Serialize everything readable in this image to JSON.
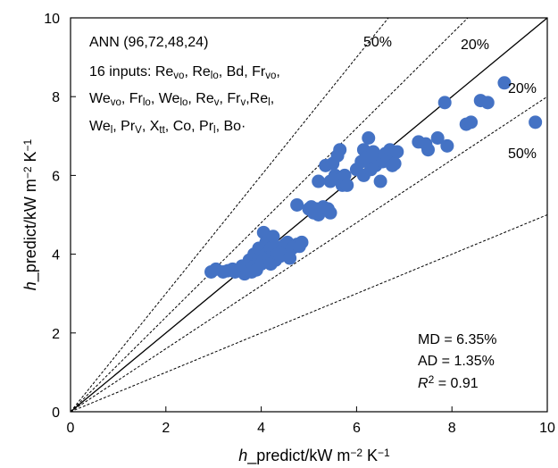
{
  "chart_data": {
    "type": "scatter",
    "xlabel": {
      "italic": "h",
      "rest": "_predict/kW m",
      "sup": "−2",
      "tail": " K",
      "sup2": "−1"
    },
    "ylabel": {
      "italic": "h",
      "rest": "_predict/kW m",
      "sup": "−2",
      "tail": " K",
      "sup2": "−1"
    },
    "xlim": [
      0,
      10
    ],
    "ylim": [
      0,
      10
    ],
    "xticks": [
      "0",
      "2",
      "4",
      "6",
      "8",
      "10"
    ],
    "yticks": [
      "0",
      "2",
      "4",
      "6",
      "8",
      "10"
    ],
    "grid": false,
    "point_color": "#4472c4",
    "reference_lines": [
      {
        "slope": 1.0,
        "style": "solid"
      },
      {
        "slope": 1.2,
        "style": "dashed",
        "label": "20%"
      },
      {
        "slope": 0.8,
        "style": "dashed",
        "label": "20%"
      },
      {
        "slope": 1.5,
        "style": "dashed",
        "label": "50%"
      },
      {
        "slope": 0.5,
        "style": "dashed",
        "label": "50%"
      }
    ],
    "annotations": {
      "model": "ANN (96,72,48,24)",
      "inputs_line1": [
        [
          "16 inputs: Re",
          ""
        ],
        [
          "vo",
          "sub"
        ],
        [
          ", Re",
          ""
        ],
        [
          "lo",
          "sub"
        ],
        [
          ", Bd, Fr",
          ""
        ],
        [
          "vo",
          "sub"
        ],
        [
          ",",
          ""
        ]
      ],
      "inputs_line2": [
        [
          "We",
          ""
        ],
        [
          "vo",
          "sub"
        ],
        [
          ", Fr",
          ""
        ],
        [
          "lo",
          "sub"
        ],
        [
          ", We",
          ""
        ],
        [
          "lo",
          "sub"
        ],
        [
          ", Re",
          ""
        ],
        [
          "v",
          "sub"
        ],
        [
          ", Fr",
          ""
        ],
        [
          "v",
          "sub"
        ],
        [
          ",Re",
          ""
        ],
        [
          "l",
          "sub"
        ],
        [
          ",",
          ""
        ]
      ],
      "inputs_line3": [
        [
          "We",
          ""
        ],
        [
          "l",
          "sub"
        ],
        [
          ", Pr",
          ""
        ],
        [
          "V",
          "sub"
        ],
        [
          ", X",
          ""
        ],
        [
          "tt",
          "sub"
        ],
        [
          ", Co, Pr",
          ""
        ],
        [
          "l",
          "sub"
        ],
        [
          ", Bo·",
          ""
        ]
      ],
      "md": "MD = 6.35%",
      "ad": "AD = 1.35%",
      "r2_pre": "R",
      "r2_sup": "2",
      "r2_post": " = 0.91"
    },
    "points": [
      [
        2.95,
        3.55
      ],
      [
        3.05,
        3.62
      ],
      [
        3.2,
        3.55
      ],
      [
        3.3,
        3.58
      ],
      [
        3.4,
        3.62
      ],
      [
        3.45,
        3.55
      ],
      [
        3.55,
        3.6
      ],
      [
        3.6,
        3.7
      ],
      [
        3.65,
        3.5
      ],
      [
        3.7,
        3.62
      ],
      [
        3.75,
        3.85
      ],
      [
        3.8,
        3.55
      ],
      [
        3.85,
        3.7
      ],
      [
        3.85,
        4.0
      ],
      [
        3.9,
        3.6
      ],
      [
        3.95,
        3.9
      ],
      [
        3.95,
        4.15
      ],
      [
        4.0,
        3.75
      ],
      [
        4.0,
        4.1
      ],
      [
        4.05,
        4.55
      ],
      [
        4.05,
        3.85
      ],
      [
        4.1,
        4.3
      ],
      [
        4.1,
        4.0
      ],
      [
        4.15,
        3.9
      ],
      [
        4.2,
        4.15
      ],
      [
        4.2,
        3.75
      ],
      [
        4.25,
        4.45
      ],
      [
        4.25,
        4.05
      ],
      [
        4.3,
        4.2
      ],
      [
        4.3,
        3.85
      ],
      [
        4.35,
        4.0
      ],
      [
        4.4,
        3.95
      ],
      [
        4.45,
        4.1
      ],
      [
        4.5,
        4.25
      ],
      [
        4.55,
        4.3
      ],
      [
        4.6,
        3.9
      ],
      [
        4.65,
        4.15
      ],
      [
        4.7,
        4.2
      ],
      [
        4.75,
        4.25
      ],
      [
        4.8,
        4.2
      ],
      [
        4.85,
        4.3
      ],
      [
        4.75,
        5.25
      ],
      [
        5.0,
        5.15
      ],
      [
        5.05,
        5.2
      ],
      [
        5.1,
        5.05
      ],
      [
        5.15,
        5.15
      ],
      [
        5.2,
        5.0
      ],
      [
        5.3,
        5.2
      ],
      [
        5.4,
        5.15
      ],
      [
        5.45,
        5.05
      ],
      [
        5.2,
        5.85
      ],
      [
        5.35,
        6.25
      ],
      [
        5.45,
        5.85
      ],
      [
        5.5,
        6.3
      ],
      [
        5.55,
        6.0
      ],
      [
        5.6,
        6.5
      ],
      [
        5.65,
        6.65
      ],
      [
        5.65,
        5.9
      ],
      [
        5.7,
        5.75
      ],
      [
        5.75,
        6.0
      ],
      [
        5.8,
        5.75
      ],
      [
        6.0,
        6.15
      ],
      [
        6.1,
        6.35
      ],
      [
        6.15,
        6.0
      ],
      [
        6.15,
        6.65
      ],
      [
        6.2,
        6.45
      ],
      [
        6.25,
        6.95
      ],
      [
        6.3,
        6.15
      ],
      [
        6.35,
        6.6
      ],
      [
        6.4,
        6.25
      ],
      [
        6.45,
        6.4
      ],
      [
        6.5,
        5.85
      ],
      [
        6.55,
        6.35
      ],
      [
        6.6,
        6.55
      ],
      [
        6.65,
        6.45
      ],
      [
        6.7,
        6.65
      ],
      [
        6.75,
        6.25
      ],
      [
        6.8,
        6.3
      ],
      [
        6.85,
        6.6
      ],
      [
        7.3,
        6.85
      ],
      [
        7.45,
        6.8
      ],
      [
        7.5,
        6.65
      ],
      [
        7.7,
        6.95
      ],
      [
        7.85,
        7.85
      ],
      [
        7.9,
        6.75
      ],
      [
        8.3,
        7.3
      ],
      [
        8.4,
        7.35
      ],
      [
        8.6,
        7.9
      ],
      [
        8.75,
        7.85
      ],
      [
        9.1,
        8.35
      ],
      [
        9.75,
        7.35
      ]
    ]
  }
}
